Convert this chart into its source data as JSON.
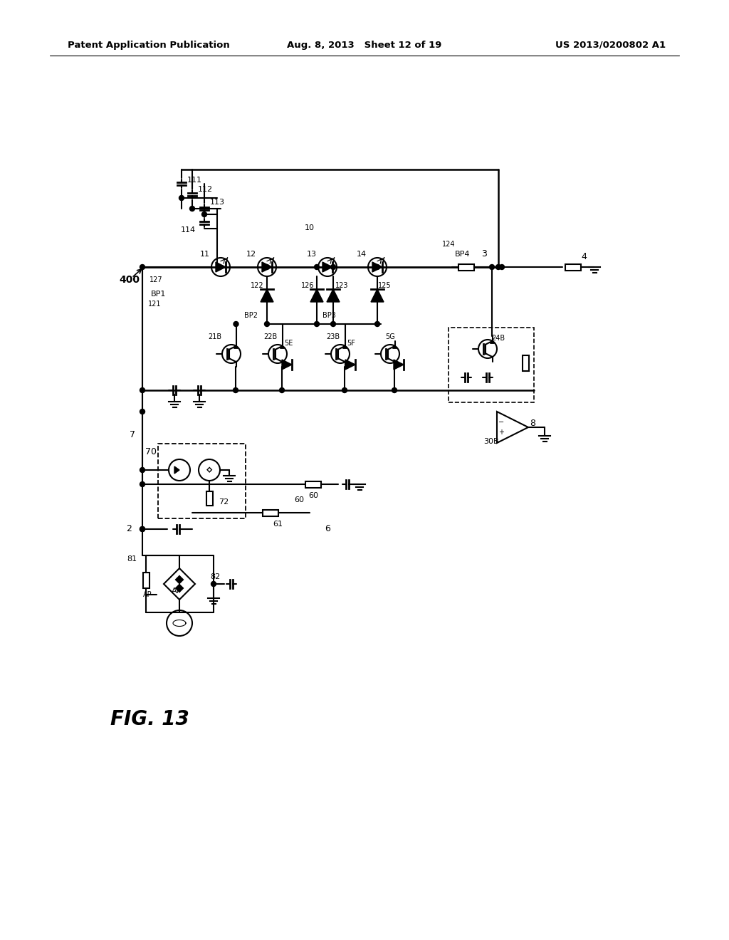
{
  "header_left": "Patent Application Publication",
  "header_center": "Aug. 8, 2013   Sheet 12 of 19",
  "header_right": "US 2013/0200802 A1",
  "bg_color": "#ffffff",
  "fig_label": "FIG. 13"
}
